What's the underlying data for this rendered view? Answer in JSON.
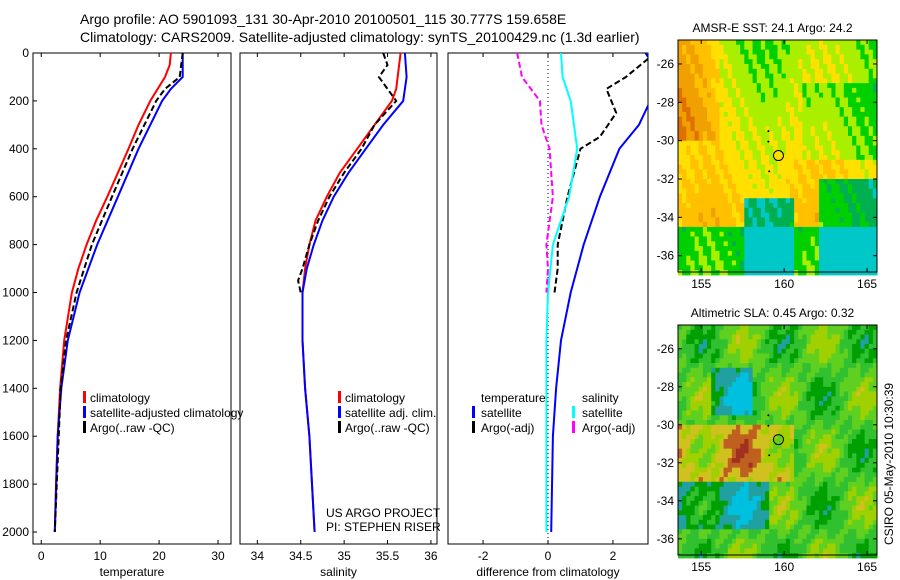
{
  "title_line1": "Argo profile: AO 5901093_131 30-Apr-2010 20100501_115 30.777S 159.658E",
  "title_line2": "Climatology: CARS2009. Satellite-adjusted climatology: synTS_20100429.nc (1.3d earlier)",
  "project_line1": "US ARGO PROJECT",
  "project_line2": "PI: STEPHEN RISER",
  "footer_vertical": "CSIRO 05-May-2010 10:30:39",
  "colors": {
    "red": "#ff0000",
    "blue": "#0000ff",
    "black": "#000000",
    "cyan": "#00ffff",
    "magenta": "#ff00ff"
  },
  "chart_data": [
    {
      "type": "line",
      "xlabel": "temperature",
      "xlim": [
        -1.4,
        32.2
      ],
      "ylim": [
        2050,
        0
      ],
      "xticks": [
        0,
        10,
        20,
        30
      ],
      "yticks": [
        0,
        200,
        400,
        600,
        800,
        1000,
        1200,
        1400,
        1600,
        1800,
        2000
      ],
      "legend": [
        "climatology",
        "satellite-adjusted climatology",
        "Argo(..raw -QC)"
      ],
      "series": [
        {
          "name": "climatology",
          "color": "#ff0000",
          "dash": false,
          "depth": [
            0,
            50,
            100,
            200,
            300,
            400,
            500,
            600,
            700,
            800,
            900,
            1000,
            1200,
            1400,
            1600,
            1800,
            2000
          ],
          "values": [
            22,
            21.8,
            21,
            18.5,
            16.5,
            14.8,
            13,
            11.2,
            9.3,
            7.7,
            6.3,
            5.2,
            3.9,
            3.2,
            2.8,
            2.5,
            2.3
          ]
        },
        {
          "name": "satellite-adjusted climatology",
          "color": "#0000ff",
          "dash": false,
          "depth": [
            0,
            100,
            150,
            200,
            400,
            600,
            800,
            1000,
            1200,
            1400,
            1600,
            2000
          ],
          "values": [
            24,
            24,
            22,
            20.5,
            16.5,
            13,
            9.5,
            6.5,
            4.5,
            3.4,
            2.8,
            2.3
          ]
        },
        {
          "name": "Argo(..raw -QC)",
          "color": "#000000",
          "dash": true,
          "depth": [
            0,
            100,
            150,
            200,
            400,
            600,
            800,
            1000,
            1200,
            1400,
            2000
          ],
          "values": [
            24,
            23.5,
            21,
            19.5,
            15.5,
            12,
            8.6,
            6,
            4.2,
            3.3,
            2.3
          ]
        }
      ]
    },
    {
      "type": "line",
      "xlabel": "salinity",
      "xlim": [
        33.8,
        36.07
      ],
      "ylim": [
        2050,
        0
      ],
      "xticks": [
        34,
        34.5,
        35,
        35.5,
        36
      ],
      "legend": [
        "climatology",
        "satellite adj. clim.",
        "Argo(..raw -QC)"
      ],
      "series": [
        {
          "name": "climatology",
          "color": "#ff0000",
          "dash": false,
          "depth": [
            0,
            150,
            200,
            300,
            400,
            500,
            600,
            700,
            800,
            900,
            1000,
            1200,
            1400,
            1600,
            1800,
            2000
          ],
          "values": [
            35.65,
            35.6,
            35.55,
            35.35,
            35.15,
            34.95,
            34.8,
            34.67,
            34.6,
            34.55,
            34.52,
            34.52,
            34.55,
            34.6,
            34.63,
            34.66
          ]
        },
        {
          "name": "satellite adj. clim.",
          "color": "#0000ff",
          "dash": false,
          "depth": [
            0,
            100,
            200,
            300,
            400,
            500,
            600,
            700,
            800,
            900,
            1000,
            1200,
            1400,
            1600,
            1800,
            2000
          ],
          "values": [
            35.7,
            35.72,
            35.68,
            35.45,
            35.25,
            35.05,
            34.88,
            34.75,
            34.65,
            34.57,
            34.52,
            34.52,
            34.55,
            34.6,
            34.63,
            34.66
          ]
        },
        {
          "name": "Argo(..raw -QC)",
          "color": "#000000",
          "dash": true,
          "depth": [
            0,
            50,
            100,
            150,
            200,
            300,
            400,
            500,
            600,
            700,
            800,
            900,
            950,
            1000
          ],
          "values": [
            35.45,
            35.5,
            35.4,
            35.5,
            35.6,
            35.35,
            35.2,
            35.0,
            34.83,
            34.7,
            34.6,
            34.52,
            34.47,
            34.5
          ]
        }
      ]
    },
    {
      "type": "line",
      "xlabel": "difference from climatology",
      "xlim": [
        -3.08,
        3.08
      ],
      "ylim": [
        2050,
        0
      ],
      "xticks": [
        -2,
        0,
        2
      ],
      "legend_temperature_title": "temperature",
      "legend_salinity_title": "salinity",
      "legend": [
        "satellite",
        "Argo(-adj)",
        "satellite",
        "Argo(-adj)"
      ],
      "series": [
        {
          "name": "temperature satellite",
          "color": "#0000ff",
          "dash": false,
          "depth": [
            0,
            100,
            300,
            400,
            600,
            800,
            1000,
            1200,
            1400,
            1600,
            2000
          ],
          "values": [
            3.0,
            3.5,
            2.8,
            2.2,
            1.6,
            1.1,
            0.7,
            0.4,
            0.25,
            0.15,
            0.1
          ]
        },
        {
          "name": "temperature Argo(-adj)",
          "color": "#000000",
          "dash": true,
          "depth": [
            0,
            100,
            150,
            250,
            350,
            400,
            600,
            800,
            900,
            1000
          ],
          "values": [
            3.3,
            2.4,
            1.8,
            2.1,
            1.6,
            1.0,
            0.6,
            0.3,
            0.3,
            0.2
          ]
        },
        {
          "name": "salinity satellite",
          "color": "#00ffff",
          "dash": false,
          "depth": [
            0,
            100,
            200,
            400,
            600,
            800,
            1000,
            1200,
            2000
          ],
          "values": [
            0.4,
            0.45,
            0.7,
            0.9,
            0.65,
            0.15,
            0,
            -0.05,
            -0.05
          ]
        },
        {
          "name": "salinity Argo(-adj)",
          "color": "#ff00ff",
          "dash": true,
          "depth": [
            0,
            100,
            200,
            300,
            400,
            500,
            600,
            800,
            900,
            1000
          ],
          "values": [
            -0.95,
            -0.8,
            -0.25,
            -0.2,
            0.05,
            0.1,
            0.15,
            -0.05,
            0,
            -0.05
          ]
        }
      ]
    },
    {
      "type": "heatmap",
      "title": "AMSR-E SST: 24.1 Argo: 24.2",
      "xlim": [
        153.6,
        165.6
      ],
      "ylim": [
        -36.85,
        -24.75
      ],
      "xticks": [
        155,
        160,
        165
      ],
      "yticks": [
        -26,
        -28,
        -30,
        -32,
        -34,
        -36
      ],
      "argo_position": [
        159.658,
        -30.777
      ]
    },
    {
      "type": "heatmap",
      "title": "Altimetric SLA: 0.45 Argo: 0.32",
      "xlim": [
        153.6,
        165.6
      ],
      "ylim": [
        -36.85,
        -24.75
      ],
      "xticks": [
        155,
        160,
        165
      ],
      "yticks": [
        -26,
        -28,
        -30,
        -32,
        -34,
        -36
      ],
      "argo_position": [
        159.658,
        -30.777
      ]
    }
  ]
}
